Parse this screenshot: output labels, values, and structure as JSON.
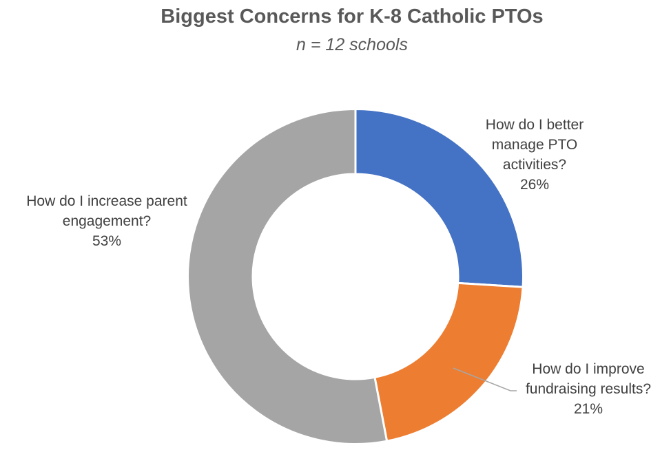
{
  "chart_data": {
    "type": "pie",
    "subtype": "donut",
    "title": "Biggest Concerns for K-8 Catholic PTOs",
    "subtitle": "n = 12 schools",
    "categories": [
      "How do I better manage PTO activities?",
      "How do I improve fundraising results?",
      "How do I increase parent engagement?"
    ],
    "values": [
      26,
      21,
      53
    ],
    "unit": "%",
    "start_angle_deg": 0,
    "direction": "clockwise",
    "hole_ratio": 0.61,
    "background_color": "#FFFFFF",
    "gap_color": "#FFFFFF",
    "leader_line_color": "#A6A6A6",
    "title_color": "#595959",
    "label_color": "#404040",
    "legend": "none",
    "slices": [
      {
        "id": "manage-activities",
        "label": "How do I better manage PTO activities?",
        "value": 26,
        "pct_label": "26%",
        "color": "#4472C4",
        "label_lines": [
          "How do I better",
          "manage PTO",
          "activities?",
          "26%"
        ]
      },
      {
        "id": "fundraising",
        "label": "How do I improve fundraising results?",
        "value": 21,
        "pct_label": "21%",
        "color": "#ED7D31",
        "label_lines": [
          "How do I improve",
          "fundraising results?",
          "21%"
        ]
      },
      {
        "id": "parent-engagement",
        "label": "How do I increase parent engagement?",
        "value": 53,
        "pct_label": "53%",
        "color": "#A5A5A5",
        "label_lines": [
          "How do I increase parent",
          "engagement?",
          "53%"
        ]
      }
    ]
  }
}
